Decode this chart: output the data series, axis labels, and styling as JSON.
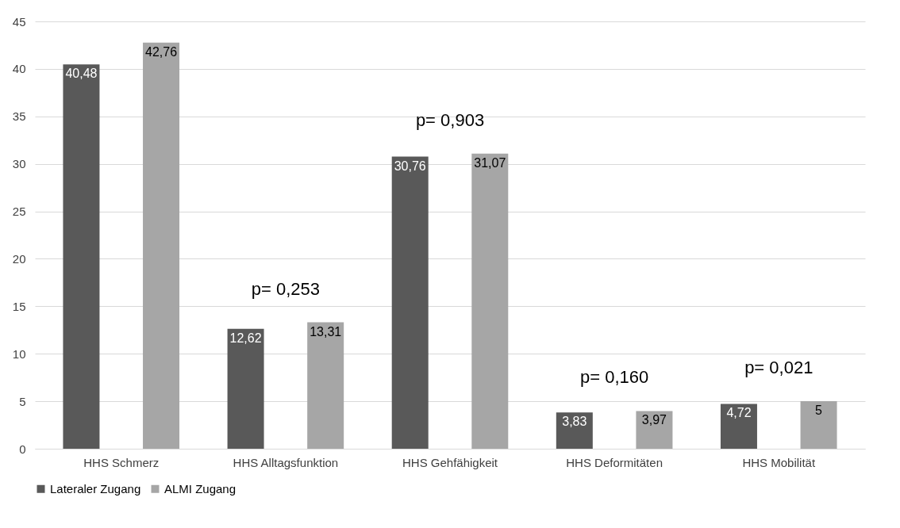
{
  "chart_data": {
    "type": "bar",
    "categories": [
      "HHS Schmerz",
      "HHS Alltagsfunktion",
      "HHS Gehfähigkeit",
      "HHS Deformitäten",
      "HHS Mobilität"
    ],
    "series": [
      {
        "name": "Lateraler Zugang",
        "color": "#595959",
        "values": [
          40.48,
          12.62,
          30.76,
          3.83,
          4.72
        ],
        "value_labels": [
          "40,48",
          "12,62",
          "30,76",
          "3,83",
          "4,72"
        ]
      },
      {
        "name": "ALMI Zugang",
        "color": "#a6a6a6",
        "values": [
          42.76,
          13.31,
          31.07,
          3.97,
          5
        ],
        "value_labels": [
          "42,76",
          "13,31",
          "31,07",
          "3,97",
          "5"
        ]
      }
    ],
    "ylim": [
      0,
      45
    ],
    "yticks": [
      0,
      5,
      10,
      15,
      20,
      25,
      30,
      35,
      40,
      45
    ],
    "grid": "y",
    "legend": "bottom",
    "annotations": [
      "p= 0,253",
      "p= 0,903",
      "p= 0,160",
      "p= 0,021"
    ]
  }
}
